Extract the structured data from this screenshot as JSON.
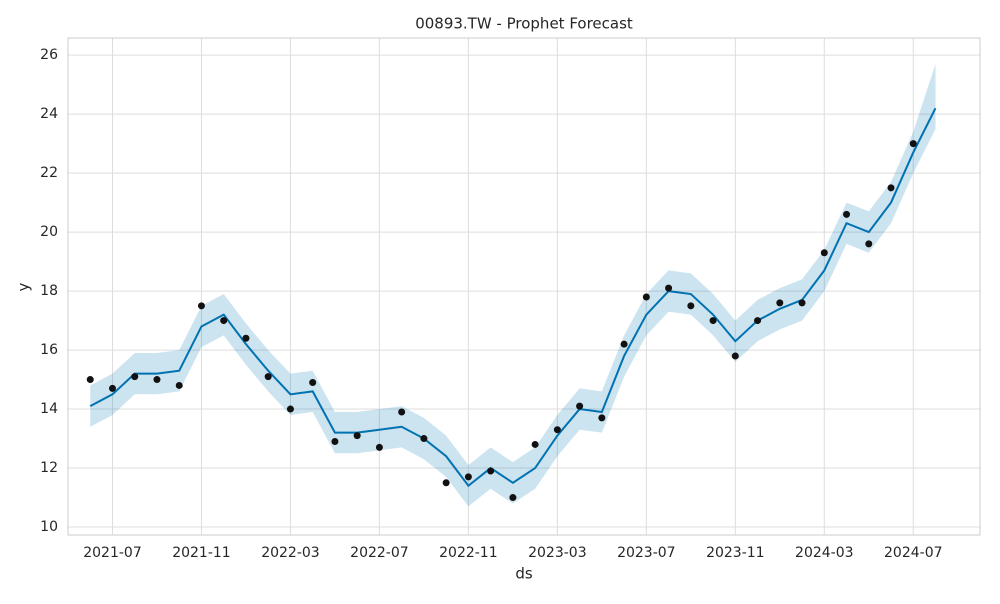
{
  "chart_data": {
    "type": "line",
    "title": "00893.TW - Prophet Forecast",
    "xlabel": "ds",
    "ylabel": "y",
    "x": [
      "2021-06",
      "2021-07",
      "2021-08",
      "2021-09",
      "2021-10",
      "2021-11",
      "2021-12",
      "2022-01",
      "2022-02",
      "2022-03",
      "2022-04",
      "2022-05",
      "2022-06",
      "2022-07",
      "2022-08",
      "2022-09",
      "2022-10",
      "2022-11",
      "2022-12",
      "2023-01",
      "2023-02",
      "2023-03",
      "2023-04",
      "2023-05",
      "2023-06",
      "2023-07",
      "2023-08",
      "2023-09",
      "2023-10",
      "2023-11",
      "2023-12",
      "2024-01",
      "2024-02",
      "2024-03",
      "2024-04",
      "2024-05",
      "2024-06",
      "2024-07",
      "2024-08"
    ],
    "series": [
      {
        "style": "scatter",
        "color": "#111111",
        "values": [
          15.0,
          14.7,
          15.1,
          15.0,
          14.8,
          17.5,
          17.0,
          16.4,
          15.1,
          14.0,
          14.9,
          12.9,
          13.1,
          12.7,
          13.9,
          13.0,
          11.5,
          11.7,
          11.9,
          11.0,
          12.8,
          13.3,
          14.1,
          13.7,
          16.2,
          17.8,
          18.1,
          17.5,
          17.0,
          15.8,
          17.0,
          17.6,
          17.6,
          19.3,
          20.6,
          19.6,
          21.5,
          23.0,
          null
        ]
      },
      {
        "style": "line",
        "color": "#0072B2",
        "values": [
          14.1,
          14.5,
          15.2,
          15.2,
          15.3,
          16.8,
          17.2,
          16.2,
          15.3,
          14.5,
          14.6,
          13.2,
          13.2,
          13.3,
          13.4,
          13.0,
          12.4,
          11.4,
          12.0,
          11.5,
          12.0,
          13.1,
          14.0,
          13.9,
          15.8,
          17.2,
          18.0,
          17.9,
          17.2,
          16.3,
          17.0,
          17.4,
          17.7,
          18.7,
          20.3,
          20.0,
          21.0,
          22.7,
          24.2
        ],
        "lower": [
          13.4,
          13.8,
          14.5,
          14.5,
          14.6,
          16.1,
          16.5,
          15.5,
          14.6,
          13.8,
          13.9,
          12.5,
          12.5,
          12.6,
          12.7,
          12.3,
          11.7,
          10.7,
          11.3,
          10.8,
          11.3,
          12.4,
          13.3,
          13.2,
          15.1,
          16.5,
          17.3,
          17.2,
          16.5,
          15.6,
          16.3,
          16.7,
          17.0,
          18.0,
          19.6,
          19.3,
          20.3,
          22.0,
          23.5
        ],
        "upper": [
          14.8,
          15.2,
          15.9,
          15.9,
          16.0,
          17.5,
          17.9,
          16.9,
          16.0,
          15.2,
          15.3,
          13.9,
          13.9,
          14.0,
          14.1,
          13.7,
          13.1,
          12.1,
          12.7,
          12.2,
          12.7,
          13.8,
          14.7,
          14.6,
          16.5,
          17.9,
          18.7,
          18.6,
          17.9,
          17.0,
          17.7,
          18.1,
          18.4,
          19.4,
          21.0,
          20.7,
          21.7,
          23.4,
          25.7
        ]
      }
    ],
    "xlim": [
      "2021-05",
      "2024-10"
    ],
    "xticks": [
      "2021-07",
      "2021-11",
      "2022-03",
      "2022-07",
      "2022-11",
      "2023-03",
      "2023-07",
      "2023-11",
      "2024-03",
      "2024-07"
    ],
    "ylim": [
      9.73,
      26.58
    ],
    "yticks": [
      10,
      12,
      14,
      16,
      18,
      20,
      22,
      24,
      26
    ],
    "grid": true
  }
}
